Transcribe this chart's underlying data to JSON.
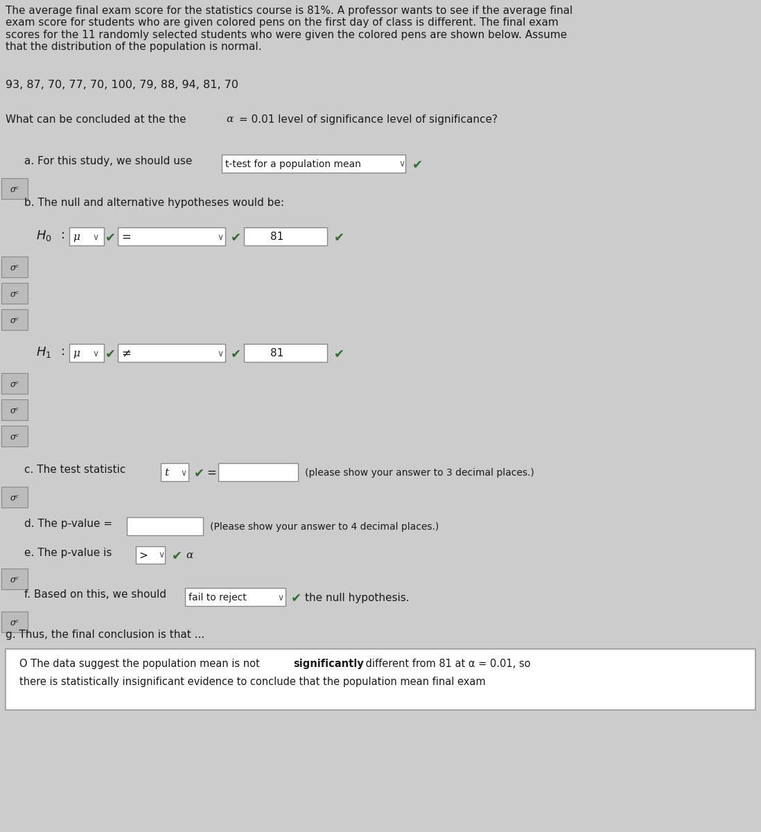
{
  "bg_color": "#cccccc",
  "text_color": "#1a1a1a",
  "check_color": "#2d6e2d",
  "intro_text": "The average final exam score for the statistics course is 81%. A professor wants to see if the average final\nexam score for students who are given colored pens on the first day of class is different. The final exam\nscores for the 11 randomly selected students who were given the colored pens are shown below. Assume\nthat the distribution of the population is normal.",
  "data_line": "93, 87, 70, 77, 70, 100, 79, 88, 94, 81, 70",
  "part_a_box": "t-test for a population mean",
  "part_c_note": "(please show your answer to 3 decimal places.)",
  "part_d_note": "(Please show your answer to 4 decimal places.)",
  "part_f_box": "fail to reject",
  "part_g_line1a": "O The data suggest the population mean is not ",
  "part_g_line1b": "significantly",
  "part_g_line1c": " different from 81 at α = 0.01, so",
  "part_g_line2": "there is statistically insignificant evidence to conclude that the population mean final exam"
}
